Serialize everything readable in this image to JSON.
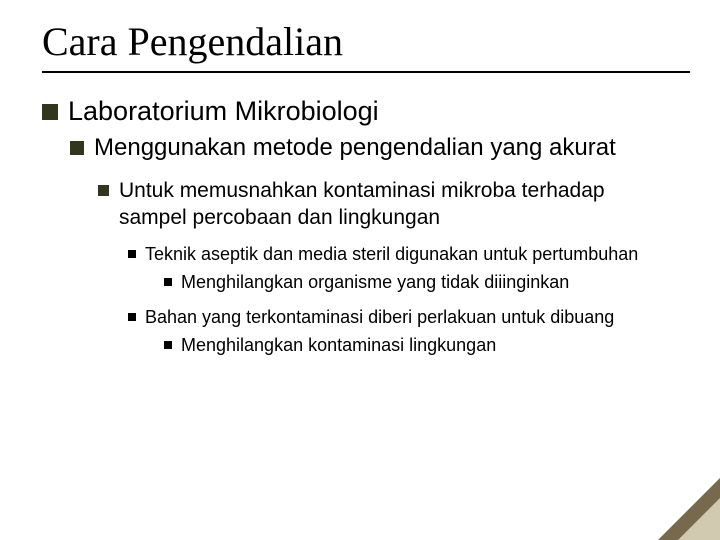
{
  "title": "Cara Pengendalian",
  "colors": {
    "bullet_olive": "#32371b",
    "bullet_black": "#000000",
    "corner_outer": "#77694b",
    "corner_inner": "#d2cab0",
    "text": "#000000",
    "background": "#ffffff"
  },
  "typography": {
    "title_family": "Times New Roman",
    "title_size_pt": 30,
    "body_family": "Arial",
    "l1_size_pt": 20,
    "l2_size_pt": 18,
    "l3_size_pt": 16,
    "l4_size_pt": 14,
    "l5_size_pt": 14
  },
  "outline": {
    "l1": "Laboratorium Mikrobiologi",
    "l2": "Menggunakan metode pengendalian yang akurat",
    "l3": "Untuk memusnahkan kontaminasi mikroba terhadap sampel percobaan dan lingkungan",
    "l4a": "Teknik aseptik dan media steril digunakan untuk pertumbuhan",
    "l5a": "Menghilangkan organisme yang tidak diiinginkan",
    "l4b": "Bahan yang terkontaminasi diberi perlakuan untuk dibuang",
    "l5b": "Menghilangkan kontaminasi lingkungan"
  }
}
